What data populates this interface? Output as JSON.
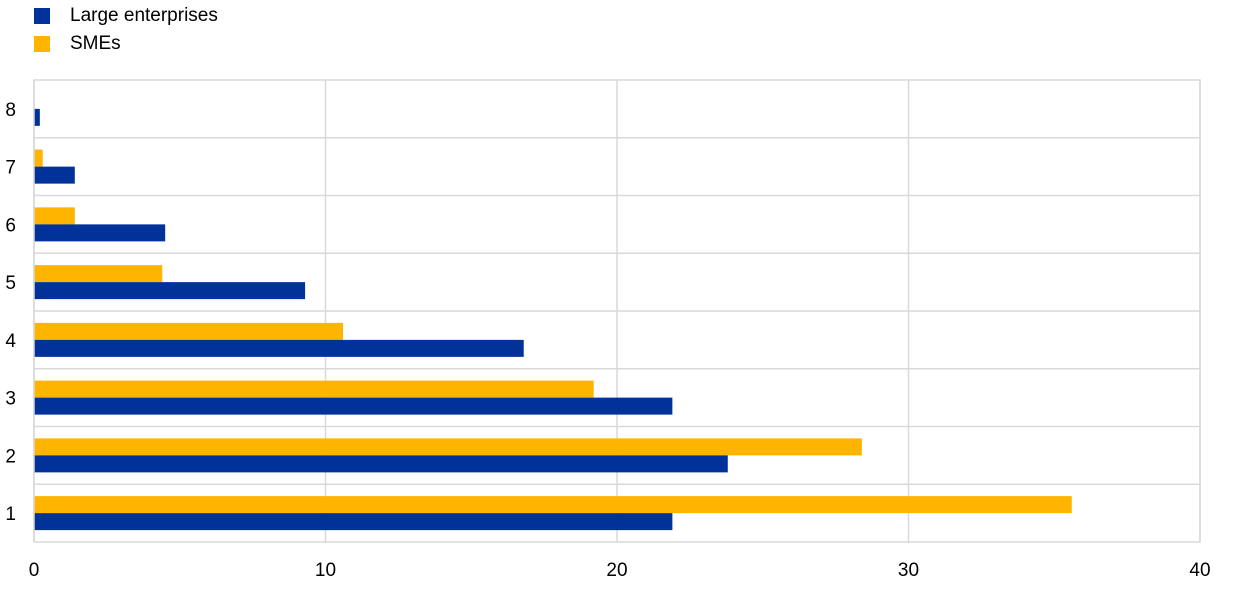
{
  "chart_data": {
    "type": "bar",
    "orientation": "horizontal",
    "categories": [
      "1",
      "2",
      "3",
      "4",
      "5",
      "6",
      "7",
      "8"
    ],
    "series": [
      {
        "name": "Large enterprises",
        "color": "#003299",
        "values": [
          21.9,
          23.8,
          21.9,
          16.8,
          9.3,
          4.5,
          1.4,
          0.2
        ]
      },
      {
        "name": "SMEs",
        "color": "#FFB400",
        "values": [
          35.6,
          28.4,
          19.2,
          10.6,
          4.4,
          1.4,
          0.3,
          0.0
        ]
      }
    ],
    "xlim": [
      0,
      40
    ],
    "xticks": [
      "0",
      "10",
      "20",
      "30",
      "40"
    ],
    "grid": true,
    "legend_position": "top-left"
  }
}
